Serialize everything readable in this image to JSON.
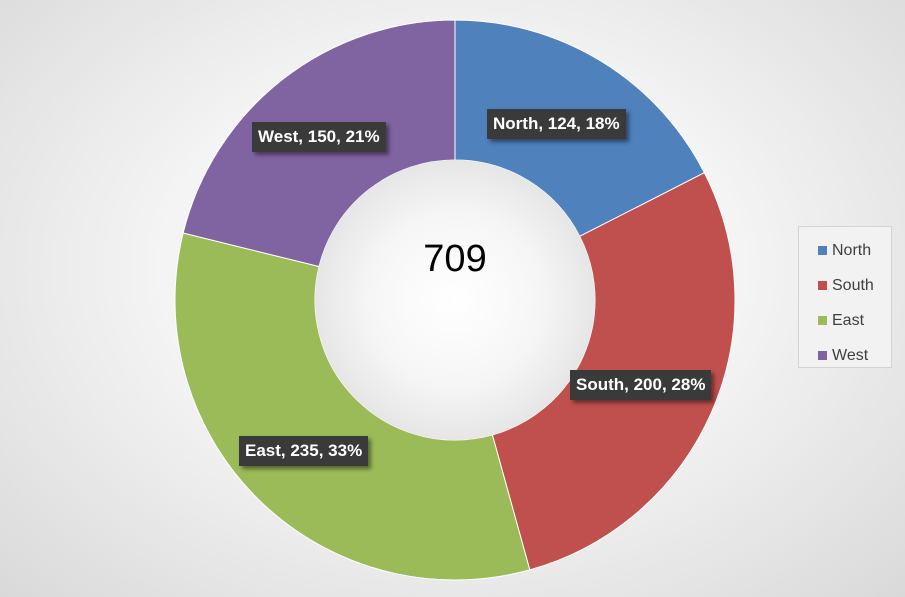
{
  "chart_data": {
    "type": "pie",
    "variant": "donut",
    "title": "",
    "center_label": "709",
    "categories": [
      "North",
      "South",
      "East",
      "West"
    ],
    "values": [
      124,
      200,
      235,
      150
    ],
    "percents": [
      "18%",
      "28%",
      "33%",
      "21%"
    ],
    "data_labels": [
      "North, 124, 18%",
      "South, 200, 28%",
      "East, 235, 33%",
      "West, 150, 21%"
    ],
    "colors": [
      "#4f81bd",
      "#c0504d",
      "#9bbb59",
      "#8064a2"
    ],
    "start_angle_deg": 0,
    "direction": "clockwise",
    "legend": {
      "placement": "right",
      "entries": [
        "North",
        "South",
        "East",
        "West"
      ]
    }
  }
}
